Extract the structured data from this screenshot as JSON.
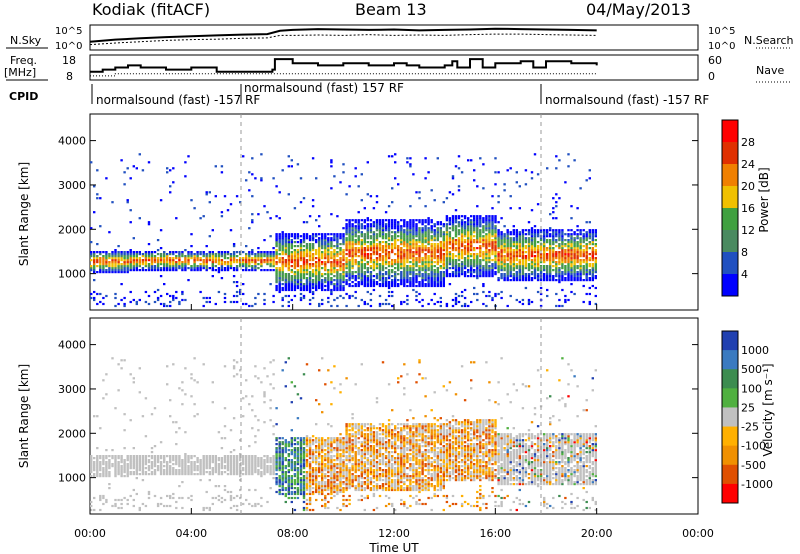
{
  "header": {
    "station": "Kodiak (fitACF)",
    "beam": "Beam 13",
    "date": "04/May/2013"
  },
  "left_labels": {
    "nsky": "N.Sky",
    "freq": "Freq.",
    "freq_unit": "[MHz]",
    "cpid": "CPID"
  },
  "right_labels": {
    "nsearch": "N.Search",
    "nave": "Nave"
  },
  "cpid_segments": [
    {
      "label": "normalsound (fast) -157 RF"
    },
    {
      "label": "normalsound (fast) 157 RF"
    },
    {
      "label": "normalsound (fast) -157 RF"
    }
  ],
  "colors": {
    "power_scale": [
      "#0000ff",
      "#2050c0",
      "#4a8a60",
      "#40a040",
      "#f0c000",
      "#f08000",
      "#e03000",
      "#ff0000"
    ],
    "velocity_scale": [
      "#2040b0",
      "#3a7ac0",
      "#3c8c50",
      "#50b040",
      "#c0c0c0",
      "#ffb000",
      "#f09000",
      "#e05000",
      "#ff0000"
    ],
    "grey": "#c0c0c0"
  },
  "chart_data": [
    {
      "type": "line",
      "panel": "noise",
      "left_axis": {
        "ticks": [
          "10^5",
          "10^0"
        ]
      },
      "right_axis": {
        "ticks": [
          "10^5",
          "10^0"
        ]
      },
      "x": [
        0,
        1,
        2,
        3,
        4,
        5,
        6,
        7,
        7.5,
        8,
        9,
        10,
        11,
        12,
        13,
        14,
        15,
        16,
        17,
        18,
        19,
        20
      ],
      "series": [
        {
          "values": [
            1.5,
            2,
            2.3,
            2.6,
            2.8,
            3,
            3.2,
            3.3,
            4.1,
            4.3,
            4.5,
            4.4,
            4.3,
            4.4,
            4.2,
            4.3,
            4.4,
            4.6,
            4.5,
            4.4,
            4.3,
            4.2
          ]
        },
        {
          "values": [
            0.8,
            1.2,
            1.5,
            1.8,
            2,
            2.1,
            2.3,
            2.4,
            3,
            3,
            3.1,
            3,
            3.2,
            3,
            3.1,
            3,
            3.2,
            3.3,
            3.3,
            3.2,
            3.1,
            3
          ]
        }
      ]
    },
    {
      "type": "line",
      "panel": "frequency",
      "left_axis": {
        "ticks": [
          "18",
          "8"
        ]
      },
      "right_axis": {
        "ticks": [
          "60",
          "0"
        ]
      },
      "x": [
        0,
        0.5,
        1,
        1.5,
        2,
        3,
        4,
        5,
        6,
        7.2,
        7.3,
        8,
        9,
        10,
        11,
        12,
        12.5,
        13,
        14,
        14.3,
        14.5,
        15,
        15.5,
        16,
        17,
        17.5,
        18,
        19,
        20
      ],
      "values": [
        11,
        12,
        13,
        14,
        13,
        12,
        13,
        11,
        11,
        12,
        17,
        15,
        14,
        15,
        14,
        15,
        14,
        13,
        14,
        16,
        13,
        17,
        13,
        15,
        16,
        13,
        16,
        15,
        14
      ],
      "dotted_values": [
        9,
        9,
        10,
        10,
        10,
        10,
        10,
        10,
        10,
        10,
        10,
        10,
        10,
        10,
        10,
        10,
        10,
        10,
        10,
        10,
        10,
        10,
        10,
        10,
        10,
        10,
        10,
        10,
        10
      ]
    },
    {
      "type": "heatmap",
      "panel": "power",
      "ylabel": "Slant Range [km]",
      "yticks": [
        1000,
        2000,
        3000,
        4000
      ],
      "ylim": [
        180,
        4600
      ],
      "colorbar_label": "Power [dB]",
      "colorbar_ticks": [
        4,
        8,
        12,
        16,
        20,
        24,
        28
      ],
      "xlim": [
        0,
        24
      ],
      "xticks": [
        "00:00",
        "04:00",
        "08:00",
        "12:00",
        "16:00",
        "20:00",
        "00:00"
      ]
    },
    {
      "type": "heatmap",
      "panel": "velocity",
      "ylabel": "Slant Range [km]",
      "yticks": [
        1000,
        2000,
        3000,
        4000
      ],
      "ylim": [
        180,
        4600
      ],
      "colorbar_label": "Velocity [m s⁻¹]",
      "colorbar_ticks": [
        1000,
        500,
        100,
        25,
        -25,
        -100,
        -500,
        -1000
      ],
      "xlim": [
        0,
        24
      ],
      "xlabel": "Time UT",
      "xticks": [
        "00:00",
        "04:00",
        "08:00",
        "12:00",
        "16:00",
        "20:00",
        "00:00"
      ]
    }
  ]
}
